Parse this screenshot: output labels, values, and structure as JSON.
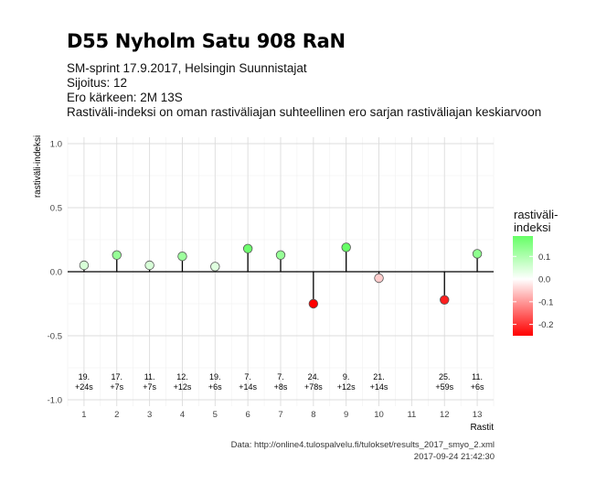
{
  "title": "D55 Nyholm Satu 908 RaN",
  "subtitle_lines": [
    "SM-sprint 17.9.2017, Helsingin Suunnistajat",
    "Sijoitus: 12",
    "Ero kärkeen: 2M 13S",
    "Rastiväli-indeksi on oman rastiväliajan suhteellinen ero sarjan rastiväliajan keskiarvoon"
  ],
  "caption_lines": [
    "Data: http://online4.tulospalvelu.fi/tulokset/results_2017_smyo_2.xml",
    "2017-09-24 21:42:30"
  ],
  "chart_data": {
    "type": "scatter",
    "xlabel": "Rastit",
    "ylabel": "rastiväli-indeksi",
    "x_ticks": [
      "1",
      "2",
      "3",
      "4",
      "5",
      "6",
      "7",
      "8",
      "9",
      "10",
      "11",
      "12",
      "13"
    ],
    "y_ticks": [
      "1.0",
      "0.5",
      "0.0",
      "-0.5",
      "-1.0"
    ],
    "y_tick_values": [
      1.0,
      0.5,
      0.0,
      -0.5,
      -1.0
    ],
    "ylim": [
      -1.05,
      1.05
    ],
    "xlim": [
      0.5,
      13.5
    ],
    "grid": true,
    "points": [
      {
        "x": 1,
        "y": 0.05,
        "label1": "19.",
        "label2": "+24s"
      },
      {
        "x": 2,
        "y": 0.13,
        "label1": "17.",
        "label2": "+7s"
      },
      {
        "x": 3,
        "y": 0.05,
        "label1": "11.",
        "label2": "+7s"
      },
      {
        "x": 4,
        "y": 0.12,
        "label1": "12.",
        "label2": "+12s"
      },
      {
        "x": 5,
        "y": 0.04,
        "label1": "19.",
        "label2": "+6s"
      },
      {
        "x": 6,
        "y": 0.18,
        "label1": "7.",
        "label2": "+14s"
      },
      {
        "x": 7,
        "y": 0.13,
        "label1": "7.",
        "label2": "+8s"
      },
      {
        "x": 8,
        "y": -0.25,
        "label1": "24.",
        "label2": "+78s"
      },
      {
        "x": 9,
        "y": 0.19,
        "label1": "9.",
        "label2": "+12s"
      },
      {
        "x": 10,
        "y": -0.05,
        "label1": "21.",
        "label2": "+14s"
      },
      {
        "x": 12,
        "y": -0.22,
        "label1": "25.",
        "label2": "+59s"
      },
      {
        "x": 13,
        "y": 0.14,
        "label1": "11.",
        "label2": "+6s"
      }
    ],
    "legend": {
      "title_lines": [
        "rastiväli-",
        "indeksi"
      ],
      "ticks": [
        "0.1",
        "0.0",
        "-0.1",
        "-0.2"
      ],
      "tick_values": [
        0.1,
        0.0,
        -0.1,
        -0.2
      ],
      "range": [
        -0.25,
        0.19
      ],
      "colors": {
        "high": "#66ff66",
        "mid": "#ffffff",
        "low": "#ff0000"
      },
      "position": "right"
    }
  }
}
